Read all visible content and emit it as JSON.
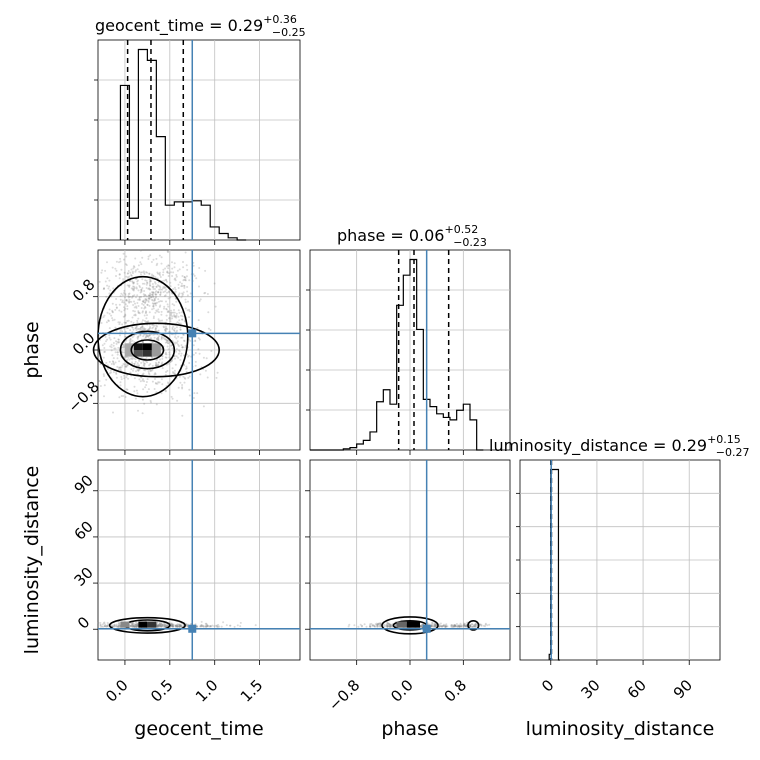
{
  "chart_data": {
    "type": "corner",
    "parameters": [
      "geocent_time",
      "phase",
      "luminosity_distance"
    ],
    "truth": {
      "geocent_time": 0.75,
      "phase": 0.25,
      "luminosity_distance": 0.29
    },
    "titles": {
      "geocent_time": {
        "name": "geocent_time",
        "median": "0.29",
        "plus": "+0.36",
        "minus": "−0.25"
      },
      "phase": {
        "name": "phase",
        "median": "0.06",
        "plus": "+0.52",
        "minus": "−0.23"
      },
      "luminosity_distance": {
        "name": "luminosity_distance",
        "median": "0.29",
        "plus": "+0.15",
        "minus": "−0.27"
      }
    },
    "axes": {
      "geocent_time": {
        "label": "geocent_time",
        "range": [
          -0.3,
          1.95
        ],
        "ticks": [
          0.0,
          0.5,
          1.0,
          1.5
        ],
        "tick_labels": [
          "0.0",
          "0.5",
          "1.0",
          "1.5"
        ]
      },
      "phase": {
        "label": "phase",
        "range": [
          -1.5,
          1.5
        ],
        "ticks": [
          -0.8,
          0.0,
          0.8
        ],
        "tick_labels": [
          "−0.8",
          "0.0",
          "0.8"
        ]
      },
      "luminosity_distance": {
        "label": "luminosity_distance",
        "range": [
          -20,
          110
        ],
        "ticks": [
          0,
          30,
          60,
          90
        ],
        "tick_labels": [
          "0",
          "30",
          "60",
          "90"
        ]
      }
    },
    "histograms": {
      "geocent_time": {
        "bin_edges": [
          -0.05,
          0.05,
          0.15,
          0.25,
          0.35,
          0.45,
          0.55,
          0.65,
          0.75,
          0.85,
          0.95,
          1.05,
          1.15,
          1.25,
          1.35
        ],
        "counts": [
          142,
          20,
          175,
          165,
          95,
          32,
          35,
          35,
          36,
          32,
          12,
          6,
          2,
          0
        ],
        "quantiles": [
          0.03,
          0.29,
          0.65
        ]
      },
      "phase": {
        "bin_edges": [
          -1.5,
          -1.0,
          -0.9,
          -0.8,
          -0.7,
          -0.6,
          -0.5,
          -0.4,
          -0.3,
          -0.2,
          -0.1,
          0.0,
          0.1,
          0.2,
          0.3,
          0.4,
          0.5,
          0.6,
          0.7,
          0.8,
          0.9,
          1.0,
          1.1
        ],
        "counts": [
          0,
          1,
          2,
          5,
          8,
          15,
          40,
          50,
          38,
          120,
          145,
          158,
          100,
          42,
          36,
          30,
          27,
          25,
          33,
          38,
          25,
          0
        ],
        "quantiles": [
          -0.17,
          0.06,
          0.58
        ]
      },
      "luminosity_distance": {
        "bin_edges": [
          -1,
          0,
          5,
          6
        ],
        "counts": [
          5,
          168,
          0
        ],
        "quantiles": [
          0.02,
          0.29,
          0.44
        ]
      }
    },
    "contour_levels": [
      "0.5",
      "1.0",
      "1.5",
      "2.0"
    ]
  }
}
